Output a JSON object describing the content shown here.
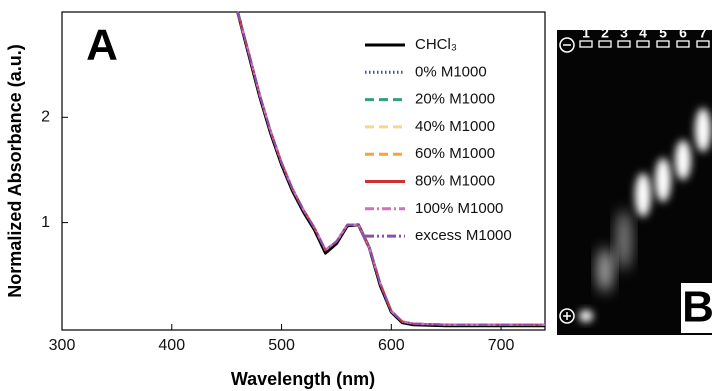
{
  "chart_data": {
    "type": "line",
    "x_label": "Wavelength (nm)",
    "y_label": "Normalized Absorbance (a.u.)",
    "panel_label": "A",
    "xlim": [
      300,
      740
    ],
    "ylim": [
      -0.02,
      3.0
    ],
    "xticks": [
      300,
      400,
      500,
      600,
      700
    ],
    "yticks": [
      1,
      2
    ],
    "x": [
      460,
      470,
      480,
      490,
      500,
      510,
      520,
      530,
      540,
      550,
      560,
      570,
      580,
      590,
      600,
      610,
      620,
      650,
      700,
      740
    ],
    "series": [
      {
        "name": "CHCl₃",
        "color": "#000000",
        "style": "solid",
        "values": [
          3.0,
          2.6,
          2.2,
          1.85,
          1.55,
          1.3,
          1.1,
          0.93,
          0.71,
          0.8,
          0.97,
          0.98,
          0.76,
          0.4,
          0.15,
          0.05,
          0.03,
          0.02,
          0.02,
          0.02
        ]
      },
      {
        "name": "0% M1000",
        "color": "#3b4fa8",
        "style": "dotted",
        "values": [
          3.0,
          2.62,
          2.22,
          1.87,
          1.57,
          1.32,
          1.12,
          0.95,
          0.74,
          0.82,
          0.98,
          0.98,
          0.76,
          0.42,
          0.16,
          0.06,
          0.04,
          0.03,
          0.03,
          0.03
        ]
      },
      {
        "name": "20% M1000",
        "color": "#2ea37a",
        "style": "dashed",
        "values": [
          3.0,
          2.62,
          2.22,
          1.87,
          1.57,
          1.32,
          1.12,
          0.95,
          0.74,
          0.82,
          0.98,
          0.98,
          0.76,
          0.42,
          0.16,
          0.06,
          0.04,
          0.03,
          0.03,
          0.03
        ]
      },
      {
        "name": "40% M1000",
        "color": "#f5d88a",
        "style": "dashed",
        "values": [
          3.0,
          2.62,
          2.22,
          1.87,
          1.57,
          1.32,
          1.12,
          0.95,
          0.74,
          0.82,
          0.98,
          0.98,
          0.76,
          0.42,
          0.16,
          0.06,
          0.04,
          0.03,
          0.03,
          0.03
        ]
      },
      {
        "name": "60% M1000",
        "color": "#f0a830",
        "style": "dashed",
        "values": [
          3.0,
          2.62,
          2.22,
          1.87,
          1.57,
          1.32,
          1.12,
          0.95,
          0.74,
          0.82,
          0.98,
          0.98,
          0.76,
          0.42,
          0.16,
          0.06,
          0.04,
          0.03,
          0.03,
          0.03
        ]
      },
      {
        "name": "80% M1000",
        "color": "#d03030",
        "style": "solid",
        "values": [
          3.0,
          2.62,
          2.22,
          1.87,
          1.57,
          1.32,
          1.12,
          0.95,
          0.74,
          0.82,
          0.98,
          0.98,
          0.76,
          0.42,
          0.16,
          0.06,
          0.04,
          0.03,
          0.03,
          0.03
        ]
      },
      {
        "name": "100% M1000",
        "color": "#d070c0",
        "style": "dashdot",
        "values": [
          3.0,
          2.62,
          2.22,
          1.87,
          1.57,
          1.32,
          1.12,
          0.95,
          0.74,
          0.82,
          0.98,
          0.98,
          0.76,
          0.42,
          0.16,
          0.06,
          0.04,
          0.03,
          0.03,
          0.03
        ]
      },
      {
        "name": "excess M1000",
        "color": "#8a4fb0",
        "style": "dashdotdot",
        "values": [
          3.0,
          2.62,
          2.22,
          1.87,
          1.57,
          1.32,
          1.12,
          0.95,
          0.74,
          0.82,
          0.98,
          0.98,
          0.76,
          0.42,
          0.16,
          0.06,
          0.04,
          0.03,
          0.03,
          0.03
        ]
      }
    ]
  },
  "gel": {
    "panel_label": "B",
    "lanes": [
      "1",
      "2",
      "3",
      "4",
      "5",
      "6",
      "7"
    ]
  }
}
